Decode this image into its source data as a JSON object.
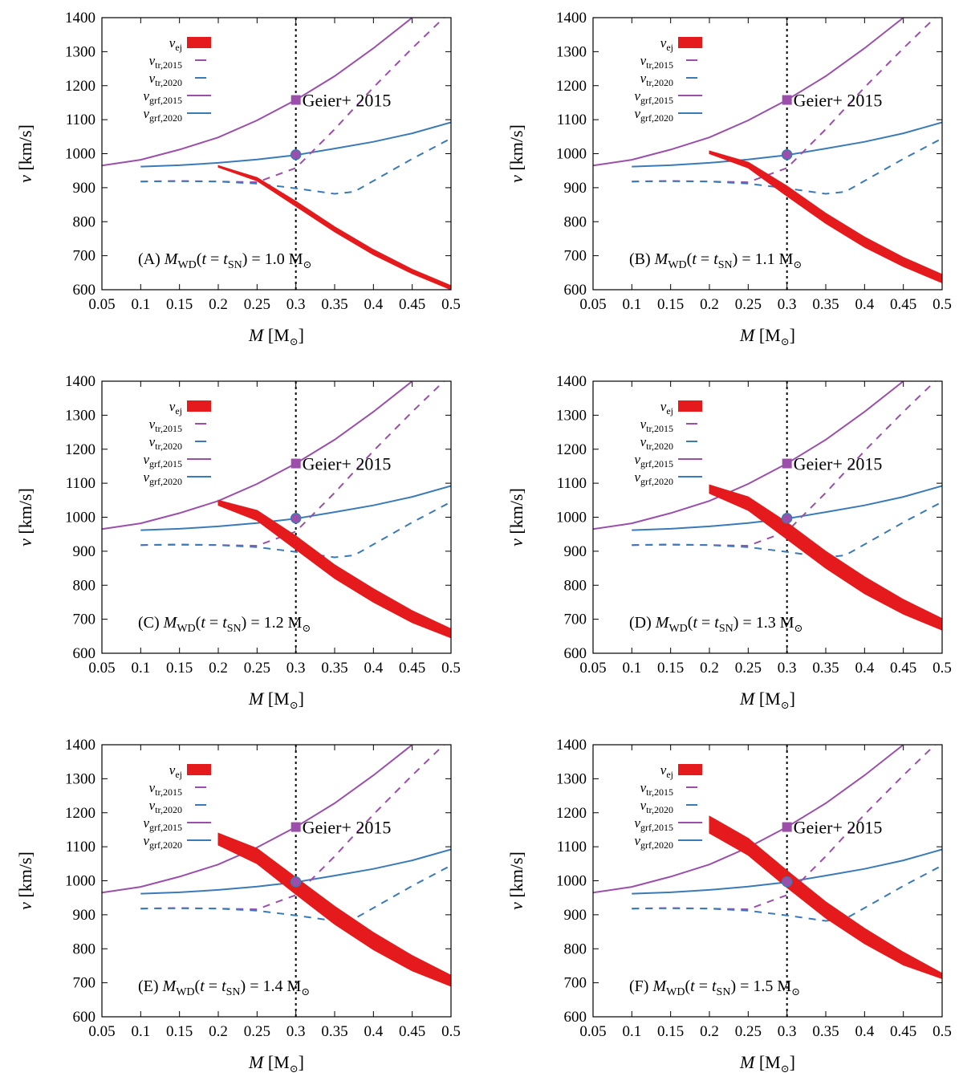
{
  "colors": {
    "ejecta": "#e41a1c",
    "purple": "#9b4fab",
    "blue": "#3a7ab8",
    "axis": "#000000"
  },
  "chart_data": [
    {
      "type": "line",
      "panel_label_prefix": "(A) ",
      "panel_label_suffix": " = 1.0 M",
      "wd_mass": 1.0,
      "xlim": [
        0.05,
        0.5
      ],
      "ylim": [
        600,
        1400
      ],
      "xticks": [
        "0.05",
        "0.1",
        "0.15",
        "0.2",
        "0.25",
        "0.3",
        "0.35",
        "0.4",
        "0.45",
        "0.5"
      ],
      "yticks": [
        "600",
        "700",
        "800",
        "900",
        "1000",
        "1100",
        "1200",
        "1300",
        "1400"
      ],
      "xlabel": "M [M",
      "ylabel": "v [km/s]",
      "vej_upper": [
        [
          0.2,
          965
        ],
        [
          0.25,
          930
        ],
        [
          0.3,
          860
        ],
        [
          0.35,
          785
        ],
        [
          0.4,
          718
        ],
        [
          0.45,
          660
        ],
        [
          0.5,
          612
        ]
      ],
      "vej_lower": [
        [
          0.2,
          960
        ],
        [
          0.25,
          920
        ],
        [
          0.3,
          845
        ],
        [
          0.35,
          770
        ],
        [
          0.4,
          703
        ],
        [
          0.45,
          647
        ],
        [
          0.5,
          600
        ]
      ]
    },
    {
      "type": "line",
      "panel_label_prefix": "(B) ",
      "panel_label_suffix": " = 1.1 M",
      "wd_mass": 1.1,
      "xlim": [
        0.05,
        0.5
      ],
      "ylim": [
        600,
        1400
      ],
      "xticks": [
        "0.05",
        "0.1",
        "0.15",
        "0.2",
        "0.25",
        "0.3",
        "0.35",
        "0.4",
        "0.45",
        "0.5"
      ],
      "yticks": [
        "600",
        "700",
        "800",
        "900",
        "1000",
        "1100",
        "1200",
        "1300",
        "1400"
      ],
      "xlabel": "M [M",
      "ylabel": "v [km/s]",
      "vej_upper": [
        [
          0.2,
          1008
        ],
        [
          0.25,
          975
        ],
        [
          0.3,
          905
        ],
        [
          0.35,
          825
        ],
        [
          0.4,
          755
        ],
        [
          0.45,
          695
        ],
        [
          0.5,
          645
        ]
      ],
      "vej_lower": [
        [
          0.2,
          1000
        ],
        [
          0.25,
          958
        ],
        [
          0.3,
          875
        ],
        [
          0.35,
          795
        ],
        [
          0.4,
          725
        ],
        [
          0.45,
          668
        ],
        [
          0.5,
          620
        ]
      ]
    },
    {
      "type": "line",
      "panel_label_prefix": "(C) ",
      "panel_label_suffix": " = 1.2 M",
      "wd_mass": 1.2,
      "xlim": [
        0.05,
        0.5
      ],
      "ylim": [
        600,
        1400
      ],
      "xticks": [
        "0.05",
        "0.1",
        "0.15",
        "0.2",
        "0.25",
        "0.3",
        "0.35",
        "0.4",
        "0.45",
        "0.5"
      ],
      "yticks": [
        "600",
        "700",
        "800",
        "900",
        "1000",
        "1100",
        "1200",
        "1300",
        "1400"
      ],
      "xlabel": "M [M",
      "ylabel": "v [km/s]",
      "vej_upper": [
        [
          0.2,
          1050
        ],
        [
          0.25,
          1020
        ],
        [
          0.3,
          945
        ],
        [
          0.35,
          860
        ],
        [
          0.4,
          790
        ],
        [
          0.45,
          725
        ],
        [
          0.5,
          672
        ]
      ],
      "vej_lower": [
        [
          0.2,
          1035
        ],
        [
          0.25,
          990
        ],
        [
          0.3,
          905
        ],
        [
          0.35,
          820
        ],
        [
          0.4,
          750
        ],
        [
          0.45,
          690
        ],
        [
          0.5,
          645
        ]
      ]
    },
    {
      "type": "line",
      "panel_label_prefix": "(D) ",
      "panel_label_suffix": " = 1.3 M",
      "wd_mass": 1.3,
      "xlim": [
        0.05,
        0.5
      ],
      "ylim": [
        600,
        1400
      ],
      "xticks": [
        "0.05",
        "0.1",
        "0.15",
        "0.2",
        "0.25",
        "0.3",
        "0.35",
        "0.4",
        "0.45",
        "0.5"
      ],
      "yticks": [
        "600",
        "700",
        "800",
        "900",
        "1000",
        "1100",
        "1200",
        "1300",
        "1400"
      ],
      "xlabel": "M [M",
      "ylabel": "v [km/s]",
      "vej_upper": [
        [
          0.2,
          1095
        ],
        [
          0.25,
          1060
        ],
        [
          0.3,
          985
        ],
        [
          0.35,
          900
        ],
        [
          0.4,
          825
        ],
        [
          0.45,
          758
        ],
        [
          0.5,
          702
        ]
      ],
      "vej_lower": [
        [
          0.2,
          1070
        ],
        [
          0.25,
          1020
        ],
        [
          0.3,
          935
        ],
        [
          0.35,
          850
        ],
        [
          0.4,
          775
        ],
        [
          0.45,
          715
        ],
        [
          0.5,
          668
        ]
      ]
    },
    {
      "type": "line",
      "panel_label_prefix": "(E) ",
      "panel_label_suffix": " = 1.4 M",
      "wd_mass": 1.4,
      "xlim": [
        0.05,
        0.5
      ],
      "ylim": [
        600,
        1400
      ],
      "xticks": [
        "0.05",
        "0.1",
        "0.15",
        "0.2",
        "0.25",
        "0.3",
        "0.35",
        "0.4",
        "0.45",
        "0.5"
      ],
      "yticks": [
        "600",
        "700",
        "800",
        "900",
        "1000",
        "1100",
        "1200",
        "1300",
        "1400"
      ],
      "xlabel": "M [M",
      "ylabel": "v [km/s]",
      "vej_upper": [
        [
          0.2,
          1140
        ],
        [
          0.25,
          1095
        ],
        [
          0.3,
          1010
        ],
        [
          0.35,
          925
        ],
        [
          0.4,
          848
        ],
        [
          0.45,
          780
        ],
        [
          0.5,
          722
        ]
      ],
      "vej_lower": [
        [
          0.2,
          1105
        ],
        [
          0.25,
          1050
        ],
        [
          0.3,
          960
        ],
        [
          0.35,
          872
        ],
        [
          0.4,
          797
        ],
        [
          0.45,
          735
        ],
        [
          0.5,
          690
        ]
      ]
    },
    {
      "type": "line",
      "panel_label_prefix": "(F) ",
      "panel_label_suffix": " = 1.5 M",
      "wd_mass": 1.5,
      "xlim": [
        0.05,
        0.5
      ],
      "ylim": [
        600,
        1400
      ],
      "xticks": [
        "0.05",
        "0.1",
        "0.15",
        "0.2",
        "0.25",
        "0.3",
        "0.35",
        "0.4",
        "0.45",
        "0.5"
      ],
      "yticks": [
        "600",
        "700",
        "800",
        "900",
        "1000",
        "1100",
        "1200",
        "1300",
        "1400"
      ],
      "xlabel": "M [M",
      "ylabel": "v [km/s]",
      "vej_upper": [
        [
          0.2,
          1190
        ],
        [
          0.25,
          1125
        ],
        [
          0.3,
          1030
        ],
        [
          0.35,
          938
        ],
        [
          0.4,
          860
        ],
        [
          0.45,
          790
        ],
        [
          0.5,
          728
        ]
      ],
      "vej_lower": [
        [
          0.2,
          1140
        ],
        [
          0.25,
          1075
        ],
        [
          0.3,
          980
        ],
        [
          0.35,
          890
        ],
        [
          0.4,
          815
        ],
        [
          0.45,
          752
        ],
        [
          0.5,
          712
        ]
      ]
    }
  ],
  "shared_series": {
    "vgrf_2015": [
      [
        0.05,
        965
      ],
      [
        0.1,
        982
      ],
      [
        0.15,
        1012
      ],
      [
        0.2,
        1048
      ],
      [
        0.25,
        1098
      ],
      [
        0.3,
        1158
      ],
      [
        0.35,
        1228
      ],
      [
        0.4,
        1310
      ],
      [
        0.45,
        1400
      ]
    ],
    "vgrf_2020": [
      [
        0.1,
        962
      ],
      [
        0.15,
        966
      ],
      [
        0.2,
        973
      ],
      [
        0.25,
        983
      ],
      [
        0.3,
        996
      ],
      [
        0.35,
        1015
      ],
      [
        0.4,
        1035
      ],
      [
        0.45,
        1060
      ],
      [
        0.5,
        1092
      ]
    ],
    "vtr_2015": [
      [
        0.1,
        918
      ],
      [
        0.15,
        920
      ],
      [
        0.2,
        918
      ],
      [
        0.25,
        916
      ],
      [
        0.3,
        958
      ],
      [
        0.35,
        1072
      ],
      [
        0.4,
        1195
      ],
      [
        0.45,
        1310
      ],
      [
        0.5,
        1420
      ]
    ],
    "vtr_2020": [
      [
        0.1,
        918
      ],
      [
        0.15,
        919
      ],
      [
        0.2,
        918
      ],
      [
        0.25,
        912
      ],
      [
        0.3,
        898
      ],
      [
        0.35,
        882
      ],
      [
        0.375,
        888
      ],
      [
        0.4,
        920
      ],
      [
        0.45,
        985
      ],
      [
        0.5,
        1045
      ]
    ],
    "vline_x": 0.3,
    "geier_point": [
      0.3,
      1158
    ],
    "circle_point": [
      0.3,
      997
    ],
    "geier_label": "Geier+ 2015"
  },
  "legend": [
    {
      "sym": "v",
      "sub": "ej",
      "style": "band"
    },
    {
      "sym": "v",
      "sub": "tr,2015",
      "style": "dashed-purple"
    },
    {
      "sym": "v",
      "sub": "tr,2020",
      "style": "dashed-blue"
    },
    {
      "sym": "v",
      "sub": "grf,2015",
      "style": "solid-purple"
    },
    {
      "sym": "v",
      "sub": "grf,2020",
      "style": "solid-blue"
    }
  ],
  "label_parts": {
    "mwd": "M",
    "wd_sub": "WD",
    "t_open": "(t = t",
    "sn_sub": "SN",
    "close": ")",
    "sun": "⊙",
    "xlabel_close": "]"
  }
}
